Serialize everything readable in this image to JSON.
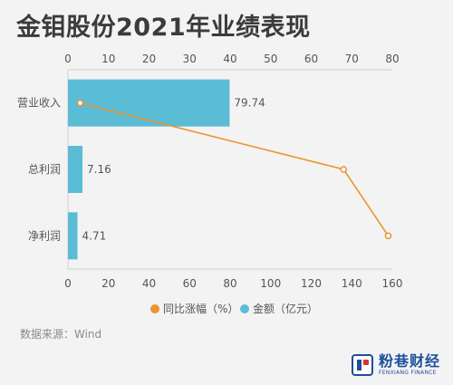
{
  "title": "金钼股份2021年业绩表现",
  "source": "数据来源：Wind",
  "brand": {
    "name": "粉巷财经",
    "english": "FENXIANG FINANCE"
  },
  "colors": {
    "bar": "#5bbcd6",
    "line": "#e8962e",
    "text": "#555555",
    "grid": "#d6d6d6"
  },
  "chart_data": {
    "type": "bar",
    "orientation": "horizontal",
    "categories": [
      "营业收入",
      "总利润",
      "净利润"
    ],
    "series": [
      {
        "name": "金额（亿元）",
        "type": "bar",
        "axis": "bottom",
        "values": [
          79.74,
          7.16,
          4.71
        ],
        "labels": [
          "79.74",
          "7.16",
          "4.71"
        ]
      },
      {
        "name": "同比涨幅（%）",
        "type": "line",
        "axis": "top",
        "values": [
          3,
          68,
          79
        ]
      }
    ],
    "bottom_axis": {
      "range": [
        0,
        160
      ],
      "ticks": [
        "0",
        "20",
        "40",
        "60",
        "80",
        "100",
        "120",
        "140",
        "160"
      ]
    },
    "top_axis": {
      "range": [
        0,
        80
      ],
      "ticks": [
        "0",
        "10",
        "20",
        "30",
        "40",
        "50",
        "60",
        "70",
        "80"
      ]
    },
    "legend": {
      "position": "bottom"
    },
    "grid": false
  }
}
